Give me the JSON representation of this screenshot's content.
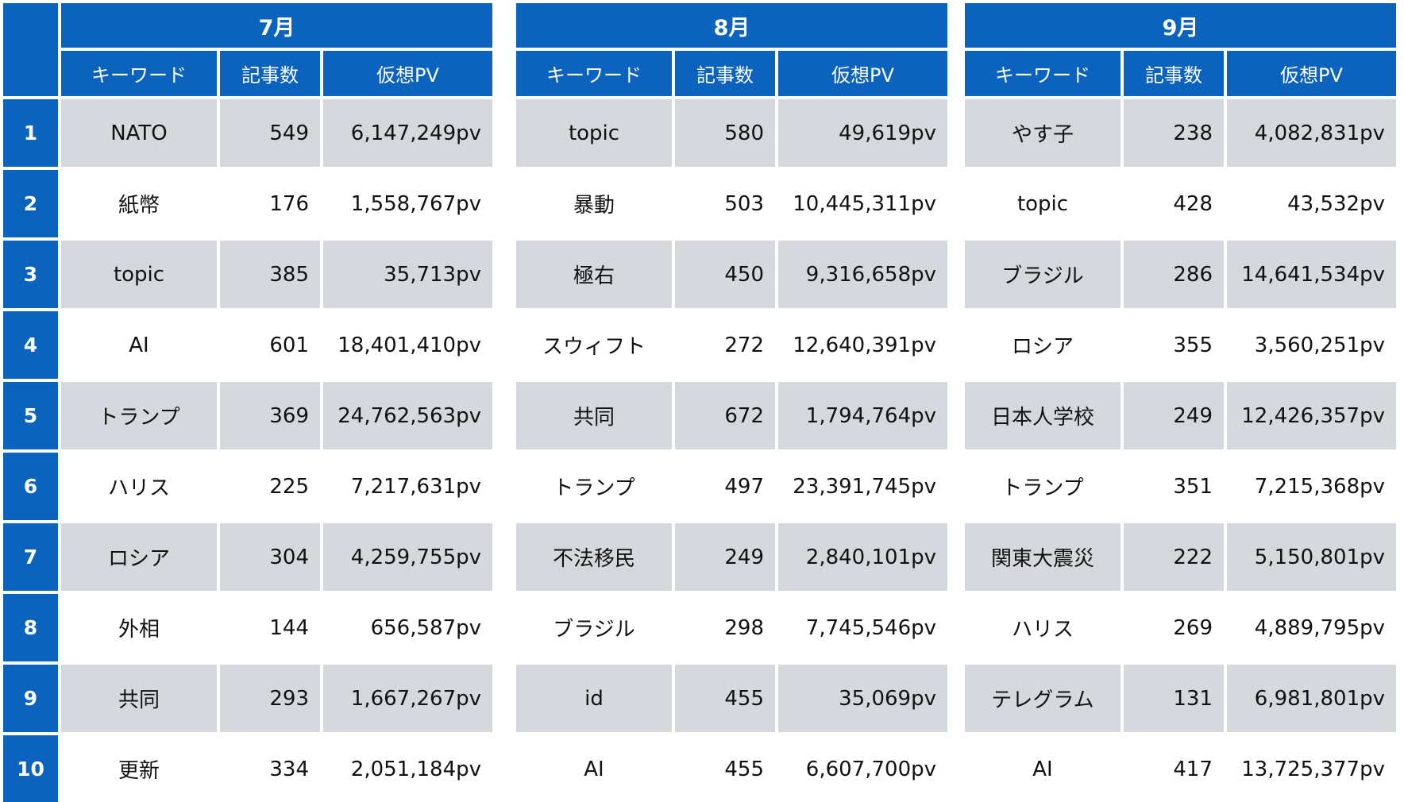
{
  "headers": {
    "keyword": "キーワード",
    "articles": "記事数",
    "pv": "仮想PV"
  },
  "ranks": [
    "1",
    "2",
    "3",
    "4",
    "5",
    "6",
    "7",
    "8",
    "9",
    "10"
  ],
  "months": [
    {
      "label": "7月",
      "rows": [
        {
          "keyword": "NATO",
          "articles": "549",
          "pv": "6,147,249pv"
        },
        {
          "keyword": "紙幣",
          "articles": "176",
          "pv": "1,558,767pv"
        },
        {
          "keyword": "topic",
          "articles": "385",
          "pv": "35,713pv"
        },
        {
          "keyword": "AI",
          "articles": "601",
          "pv": "18,401,410pv"
        },
        {
          "keyword": "トランプ",
          "articles": "369",
          "pv": "24,762,563pv"
        },
        {
          "keyword": "ハリス",
          "articles": "225",
          "pv": "7,217,631pv"
        },
        {
          "keyword": "ロシア",
          "articles": "304",
          "pv": "4,259,755pv"
        },
        {
          "keyword": "外相",
          "articles": "144",
          "pv": "656,587pv"
        },
        {
          "keyword": "共同",
          "articles": "293",
          "pv": "1,667,267pv"
        },
        {
          "keyword": "更新",
          "articles": "334",
          "pv": "2,051,184pv"
        }
      ]
    },
    {
      "label": "8月",
      "rows": [
        {
          "keyword": "topic",
          "articles": "580",
          "pv": "49,619pv"
        },
        {
          "keyword": "暴動",
          "articles": "503",
          "pv": "10,445,311pv"
        },
        {
          "keyword": "極右",
          "articles": "450",
          "pv": "9,316,658pv"
        },
        {
          "keyword": "スウィフト",
          "articles": "272",
          "pv": "12,640,391pv"
        },
        {
          "keyword": "共同",
          "articles": "672",
          "pv": "1,794,764pv"
        },
        {
          "keyword": "トランプ",
          "articles": "497",
          "pv": "23,391,745pv"
        },
        {
          "keyword": "不法移民",
          "articles": "249",
          "pv": "2,840,101pv"
        },
        {
          "keyword": "ブラジル",
          "articles": "298",
          "pv": "7,745,546pv"
        },
        {
          "keyword": "id",
          "articles": "455",
          "pv": "35,069pv"
        },
        {
          "keyword": "AI",
          "articles": "455",
          "pv": "6,607,700pv"
        }
      ]
    },
    {
      "label": "9月",
      "rows": [
        {
          "keyword": "やす子",
          "articles": "238",
          "pv": "4,082,831pv"
        },
        {
          "keyword": "topic",
          "articles": "428",
          "pv": "43,532pv"
        },
        {
          "keyword": "ブラジル",
          "articles": "286",
          "pv": "14,641,534pv"
        },
        {
          "keyword": "ロシア",
          "articles": "355",
          "pv": "3,560,251pv"
        },
        {
          "keyword": "日本人学校",
          "articles": "249",
          "pv": "12,426,357pv"
        },
        {
          "keyword": "トランプ",
          "articles": "351",
          "pv": "7,215,368pv"
        },
        {
          "keyword": "関東大震災",
          "articles": "222",
          "pv": "5,150,801pv"
        },
        {
          "keyword": "ハリス",
          "articles": "269",
          "pv": "4,889,795pv"
        },
        {
          "keyword": "テレグラム",
          "articles": "131",
          "pv": "6,981,801pv"
        },
        {
          "keyword": "AI",
          "articles": "417",
          "pv": "13,725,377pv"
        }
      ]
    }
  ]
}
